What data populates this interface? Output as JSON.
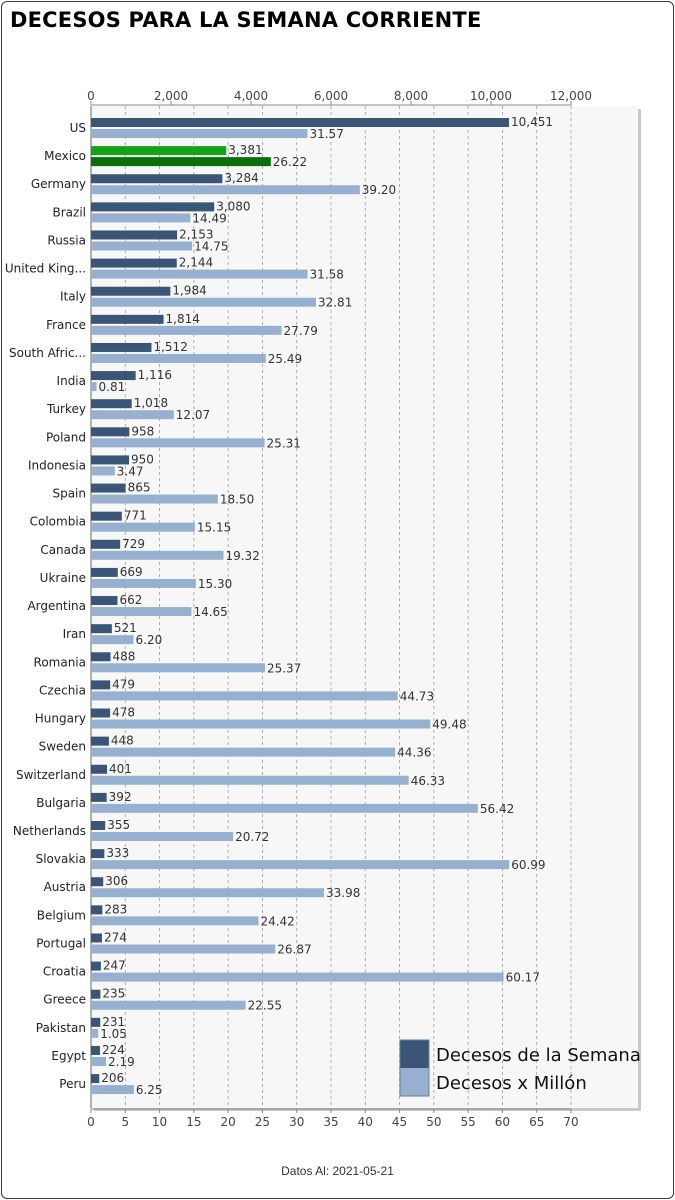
{
  "page": {
    "title": "DECESOS PARA LA SEMANA CORRIENTE",
    "footer": "Datos Al: 2021-05-21"
  },
  "colors": {
    "weekly": "#3a5576",
    "per_million": "#98b0cf",
    "highlight_weekly": "#14a314",
    "highlight_per_million": "#0a6e0a",
    "plot_bg": "#f7f7f7",
    "grid": "#9a9a9a"
  },
  "chart_data": {
    "type": "bar",
    "orientation": "horizontal",
    "title": "DECESOS PARA LA SEMANA CORRIENTE",
    "highlight_category": "Mexico",
    "categories": [
      "US",
      "Mexico",
      "Germany",
      "Brazil",
      "Russia",
      "United King...",
      "Italy",
      "France",
      "South Afric...",
      "India",
      "Turkey",
      "Poland",
      "Indonesia",
      "Spain",
      "Colombia",
      "Canada",
      "Ukraine",
      "Argentina",
      "Iran",
      "Romania",
      "Czechia",
      "Hungary",
      "Sweden",
      "Switzerland",
      "Bulgaria",
      "Netherlands",
      "Slovakia",
      "Austria",
      "Belgium",
      "Portugal",
      "Croatia",
      "Greece",
      "Pakistan",
      "Egypt",
      "Peru"
    ],
    "series": [
      {
        "name": "Decesos de la Semana",
        "axis": "top",
        "values": [
          10451,
          3381,
          3284,
          3080,
          2153,
          2144,
          1984,
          1814,
          1512,
          1116,
          1018,
          958,
          950,
          865,
          771,
          729,
          669,
          662,
          521,
          488,
          479,
          478,
          448,
          401,
          392,
          355,
          333,
          306,
          283,
          274,
          247,
          235,
          231,
          224,
          206
        ],
        "labels": [
          "10,451",
          "3,381",
          "3,284",
          "3,080",
          "2,153",
          "2,144",
          "1,984",
          "1,814",
          "1,512",
          "1,116",
          "1,018",
          "958",
          "950",
          "865",
          "771",
          "729",
          "669",
          "662",
          "521",
          "488",
          "479",
          "478",
          "448",
          "401",
          "392",
          "355",
          "333",
          "306",
          "283",
          "274",
          "247",
          "235",
          "231",
          "224",
          "206"
        ]
      },
      {
        "name": "Decesos x Millón",
        "axis": "bottom",
        "values": [
          31.57,
          26.22,
          39.2,
          14.49,
          14.75,
          31.58,
          32.81,
          27.79,
          25.49,
          0.81,
          12.07,
          25.31,
          3.47,
          18.5,
          15.15,
          19.32,
          15.3,
          14.65,
          6.2,
          25.37,
          44.73,
          49.48,
          44.36,
          46.33,
          56.42,
          20.72,
          60.99,
          33.98,
          24.42,
          26.87,
          60.17,
          22.55,
          1.05,
          2.19,
          6.25
        ],
        "labels": [
          "31.57",
          "26.22",
          "39.20",
          "14.49",
          "14.75",
          "31.58",
          "32.81",
          "27.79",
          "25.49",
          "0.81",
          "12.07",
          "25.31",
          "3.47",
          "18.50",
          "15.15",
          "19.32",
          "15.30",
          "14.65",
          "6.20",
          "25.37",
          "44.73",
          "49.48",
          "44.36",
          "46.33",
          "56.42",
          "20.72",
          "60.99",
          "33.98",
          "24.42",
          "26.87",
          "60.17",
          "22.55",
          "1.05",
          "2.19",
          "6.25"
        ]
      }
    ],
    "top_axis": {
      "range": [
        0,
        12000
      ],
      "ticks": [
        0,
        2000,
        4000,
        6000,
        8000,
        10000,
        12000
      ],
      "tick_labels": [
        "0",
        "2,000",
        "4,000",
        "6,000",
        "8,000",
        "10,000",
        "12,000"
      ]
    },
    "bottom_axis": {
      "range": [
        0,
        70
      ],
      "ticks": [
        0,
        5,
        10,
        15,
        20,
        25,
        30,
        35,
        40,
        45,
        50,
        55,
        60,
        65,
        70
      ],
      "tick_labels": [
        "0",
        "5",
        "10",
        "15",
        "20",
        "25",
        "30",
        "35",
        "40",
        "45",
        "50",
        "55",
        "60",
        "65",
        "70"
      ]
    },
    "grid": true,
    "legend": {
      "position": "bottom-right",
      "entries": [
        "Decesos de la Semana",
        "Decesos x Millón"
      ]
    }
  }
}
